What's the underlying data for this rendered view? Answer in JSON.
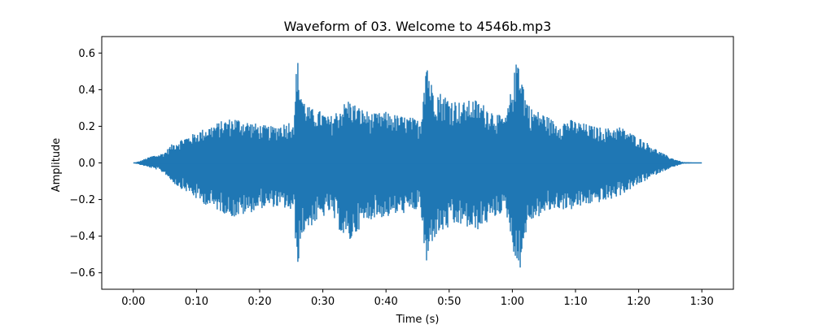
{
  "chart_data": {
    "type": "line",
    "title": "Waveform of 03. Welcome to 4546b.mp3",
    "xlabel": "Time (s)",
    "ylabel": "Amplitude",
    "xlim": [
      -5,
      95
    ],
    "ylim": [
      -0.69,
      0.69
    ],
    "x_ticks": [
      {
        "value": 0,
        "label": "0:00"
      },
      {
        "value": 10,
        "label": "0:10"
      },
      {
        "value": 20,
        "label": "0:20"
      },
      {
        "value": 30,
        "label": "0:30"
      },
      {
        "value": 40,
        "label": "0:40"
      },
      {
        "value": 50,
        "label": "0:50"
      },
      {
        "value": 60,
        "label": "1:00"
      },
      {
        "value": 70,
        "label": "1:10"
      },
      {
        "value": 80,
        "label": "1:20"
      },
      {
        "value": 90,
        "label": "1:30"
      }
    ],
    "y_ticks": [
      {
        "value": -0.6,
        "label": "−0.6"
      },
      {
        "value": -0.4,
        "label": "−0.4"
      },
      {
        "value": -0.2,
        "label": "−0.2"
      },
      {
        "value": 0.0,
        "label": "0.0"
      },
      {
        "value": 0.2,
        "label": "0.2"
      },
      {
        "value": 0.4,
        "label": "0.4"
      },
      {
        "value": 0.6,
        "label": "0.6"
      }
    ],
    "grid": false,
    "series": [
      {
        "color": "#1f77b4",
        "envelope": {
          "time_s": [
            0.0,
            0.5,
            1.0,
            2.0,
            3.0,
            4.0,
            5.0,
            6.0,
            7.0,
            8.0,
            9.0,
            10.0,
            12.0,
            14.0,
            16.0,
            18.0,
            20.0,
            22.0,
            24.0,
            25.5,
            25.9,
            26.3,
            27.0,
            28.0,
            30.0,
            31.0,
            32.0,
            34.0,
            36.0,
            38.0,
            40.0,
            42.0,
            44.0,
            45.5,
            46.2,
            46.5,
            47.0,
            48.0,
            50.0,
            52.0,
            54.0,
            56.0,
            58.0,
            59.0,
            61.0,
            61.5,
            62.0,
            63.0,
            65.0,
            67.0,
            69.0,
            71.0,
            73.0,
            75.0,
            77.0,
            79.0,
            81.0,
            83.0,
            85.0,
            87.0,
            90.0
          ],
          "max": [
            0.0,
            0.005,
            0.01,
            0.025,
            0.04,
            0.045,
            0.06,
            0.1,
            0.12,
            0.14,
            0.15,
            0.17,
            0.2,
            0.23,
            0.25,
            0.23,
            0.21,
            0.2,
            0.22,
            0.24,
            0.62,
            0.45,
            0.35,
            0.3,
            0.28,
            0.25,
            0.28,
            0.35,
            0.3,
            0.27,
            0.28,
            0.26,
            0.25,
            0.23,
            0.55,
            0.6,
            0.45,
            0.4,
            0.36,
            0.33,
            0.35,
            0.31,
            0.26,
            0.25,
            0.62,
            0.5,
            0.38,
            0.3,
            0.27,
            0.22,
            0.24,
            0.22,
            0.2,
            0.19,
            0.2,
            0.16,
            0.12,
            0.07,
            0.03,
            0.005,
            0.0
          ],
          "min": [
            0.0,
            -0.005,
            -0.01,
            -0.02,
            -0.03,
            -0.04,
            -0.06,
            -0.1,
            -0.13,
            -0.15,
            -0.17,
            -0.2,
            -0.24,
            -0.27,
            -0.3,
            -0.28,
            -0.25,
            -0.24,
            -0.25,
            -0.28,
            -0.63,
            -0.48,
            -0.38,
            -0.35,
            -0.3,
            -0.27,
            -0.33,
            -0.45,
            -0.35,
            -0.3,
            -0.3,
            -0.28,
            -0.27,
            -0.25,
            -0.55,
            -0.6,
            -0.45,
            -0.4,
            -0.36,
            -0.34,
            -0.38,
            -0.33,
            -0.28,
            -0.27,
            -0.63,
            -0.52,
            -0.4,
            -0.32,
            -0.28,
            -0.25,
            -0.26,
            -0.24,
            -0.22,
            -0.21,
            -0.18,
            -0.14,
            -0.1,
            -0.06,
            -0.03,
            -0.005,
            0.0
          ]
        }
      }
    ]
  }
}
